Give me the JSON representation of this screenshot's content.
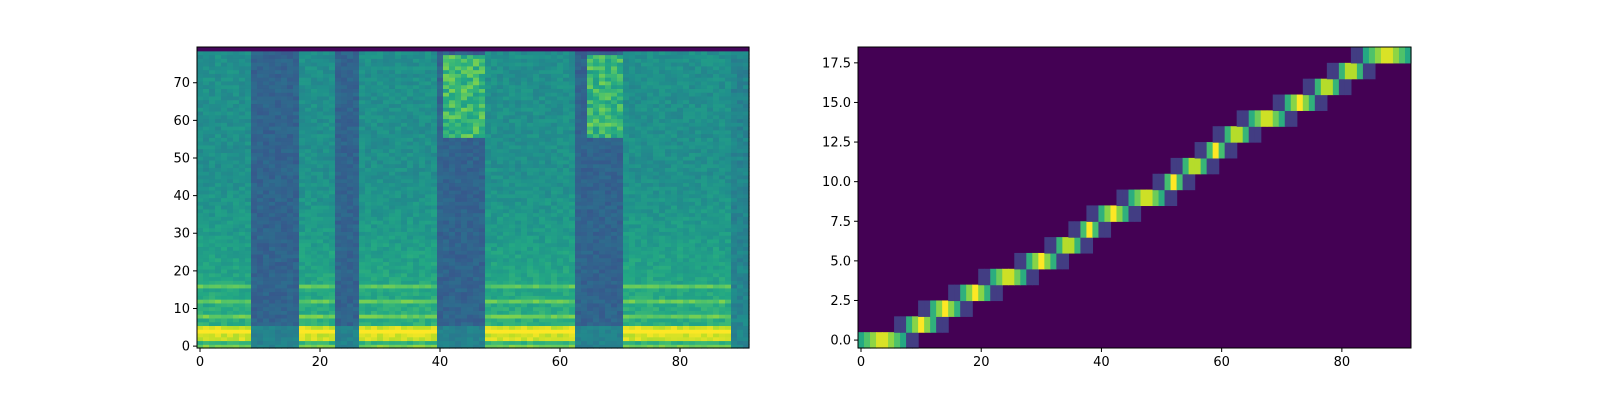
{
  "chart_data": [
    {
      "type": "heatmap",
      "title": "",
      "xlabel": "",
      "ylabel": "",
      "colormap": "viridis",
      "xlim": [
        -0.5,
        91.5
      ],
      "ylim": [
        -0.5,
        79.5
      ],
      "n_cols": 92,
      "n_rows": 80,
      "xticks": [
        0,
        20,
        40,
        60,
        80
      ],
      "xtick_labels": [
        "0",
        "20",
        "40",
        "60",
        "80"
      ],
      "yticks": [
        0,
        10,
        20,
        30,
        40,
        50,
        60,
        70
      ],
      "ytick_labels": [
        "0",
        "10",
        "20",
        "30",
        "40",
        "50",
        "60",
        "70"
      ],
      "high_energy_columns": [
        [
          0,
          8
        ],
        [
          17,
          22
        ],
        [
          27,
          39
        ],
        [
          48,
          62
        ],
        [
          71,
          88
        ]
      ],
      "low_energy_columns": [
        [
          9,
          16
        ],
        [
          23,
          26
        ],
        [
          40,
          47
        ],
        [
          63,
          70
        ]
      ],
      "upper_band_highlights": [
        [
          41,
          48
        ],
        [
          65,
          72
        ]
      ],
      "grid": false
    },
    {
      "type": "heatmap",
      "title": "",
      "xlabel": "",
      "ylabel": "",
      "colormap": "viridis",
      "xlim": [
        -0.5,
        91.5
      ],
      "ylim": [
        -0.5,
        18.5
      ],
      "n_cols": 92,
      "n_rows": 19,
      "xticks": [
        0,
        20,
        40,
        60,
        80
      ],
      "xtick_labels": [
        "0",
        "20",
        "40",
        "60",
        "80"
      ],
      "yticks": [
        0,
        2.5,
        5,
        7.5,
        10,
        12.5,
        15,
        17.5
      ],
      "ytick_labels": [
        "0.0",
        "2.5",
        "5.0",
        "7.5",
        "10.0",
        "12.5",
        "15.0",
        "17.5"
      ],
      "alignment_path": [
        {
          "row": 0,
          "x_start": 0,
          "x_end": 7
        },
        {
          "row": 1,
          "x_start": 8,
          "x_end": 12
        },
        {
          "row": 2,
          "x_start": 12,
          "x_end": 16
        },
        {
          "row": 3,
          "x_start": 17,
          "x_end": 21
        },
        {
          "row": 4,
          "x_start": 22,
          "x_end": 27
        },
        {
          "row": 5,
          "x_start": 28,
          "x_end": 32
        },
        {
          "row": 6,
          "x_start": 33,
          "x_end": 36
        },
        {
          "row": 7,
          "x_start": 37,
          "x_end": 39
        },
        {
          "row": 8,
          "x_start": 40,
          "x_end": 44
        },
        {
          "row": 9,
          "x_start": 45,
          "x_end": 50
        },
        {
          "row": 10,
          "x_start": 51,
          "x_end": 53
        },
        {
          "row": 11,
          "x_start": 54,
          "x_end": 57
        },
        {
          "row": 12,
          "x_start": 58,
          "x_end": 60
        },
        {
          "row": 13,
          "x_start": 61,
          "x_end": 64
        },
        {
          "row": 14,
          "x_start": 65,
          "x_end": 70
        },
        {
          "row": 15,
          "x_start": 71,
          "x_end": 75
        },
        {
          "row": 16,
          "x_start": 76,
          "x_end": 79
        },
        {
          "row": 17,
          "x_start": 80,
          "x_end": 83
        },
        {
          "row": 18,
          "x_start": 84,
          "x_end": 91
        }
      ],
      "grid": false
    }
  ]
}
